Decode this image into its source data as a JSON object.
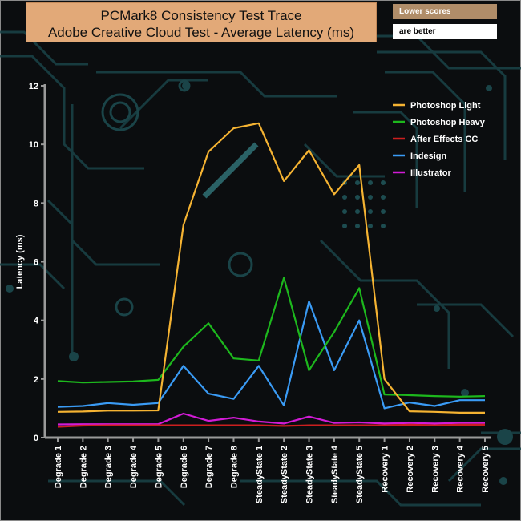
{
  "header": {
    "title_line1": "PCMark8 Consistency Test Trace",
    "title_line2": "Adobe Creative Cloud Test -  Average Latency (ms)",
    "note_line1": "Lower scores",
    "note_line2": "are better"
  },
  "colors": {
    "background": "#0b0d0f",
    "circuit": "#1a4448",
    "title_box": "#e2a978"
  },
  "chart_data": {
    "type": "line",
    "title": "PCMark8 Consistency Test Trace Adobe Creative Cloud Test -  Average Latency (ms)",
    "xlabel": "",
    "ylabel": "Latency (ms)",
    "ylim": [
      0,
      12
    ],
    "yticks": [
      0,
      2,
      4,
      6,
      8,
      10,
      12
    ],
    "grid": false,
    "legend_position": "top-right",
    "categories": [
      "Degrade 1",
      "Degrade 2",
      "Degrade 3",
      "Degrade 4",
      "Degrade 5",
      "Degrade 6",
      "Degrade 7",
      "Degrade 8",
      "SteadyState 1",
      "SteadyState 2",
      "SteadyState 3",
      "SteadyState 4",
      "SteadyState 5",
      "Recovery 1",
      "Recovery 2",
      "Recovery 3",
      "Recovery 4",
      "Recovery 5"
    ],
    "series": [
      {
        "name": "Photoshop Light",
        "color": "#f5b332",
        "values": [
          0.88,
          0.89,
          0.92,
          0.92,
          0.93,
          7.25,
          9.75,
          10.55,
          10.72,
          8.75,
          9.8,
          8.3,
          9.3,
          2.0,
          0.9,
          0.88,
          0.85,
          0.85
        ]
      },
      {
        "name": " Photoshop Heavy",
        "color": "#1db81d",
        "values": [
          1.93,
          1.88,
          1.9,
          1.92,
          1.97,
          3.1,
          3.9,
          2.7,
          2.63,
          5.45,
          2.3,
          3.6,
          5.1,
          1.47,
          1.45,
          1.42,
          1.4,
          1.42
        ]
      },
      {
        "name": "After Effects CC",
        "color": "#cc1f1f",
        "values": [
          0.37,
          0.41,
          0.42,
          0.42,
          0.42,
          0.42,
          0.42,
          0.42,
          0.42,
          0.4,
          0.42,
          0.42,
          0.42,
          0.42,
          0.44,
          0.42,
          0.44,
          0.44
        ]
      },
      {
        "name": "Indesign",
        "color": "#3a9bf5",
        "values": [
          1.05,
          1.08,
          1.18,
          1.12,
          1.18,
          2.45,
          1.5,
          1.32,
          2.45,
          1.1,
          4.65,
          2.3,
          4.0,
          1.0,
          1.2,
          1.08,
          1.28,
          1.28
        ]
      },
      {
        "name": "Illustrator",
        "color": "#d21bd6",
        "values": [
          0.45,
          0.46,
          0.46,
          0.46,
          0.46,
          0.82,
          0.57,
          0.68,
          0.55,
          0.48,
          0.72,
          0.5,
          0.52,
          0.48,
          0.5,
          0.48,
          0.5,
          0.5
        ]
      }
    ]
  }
}
